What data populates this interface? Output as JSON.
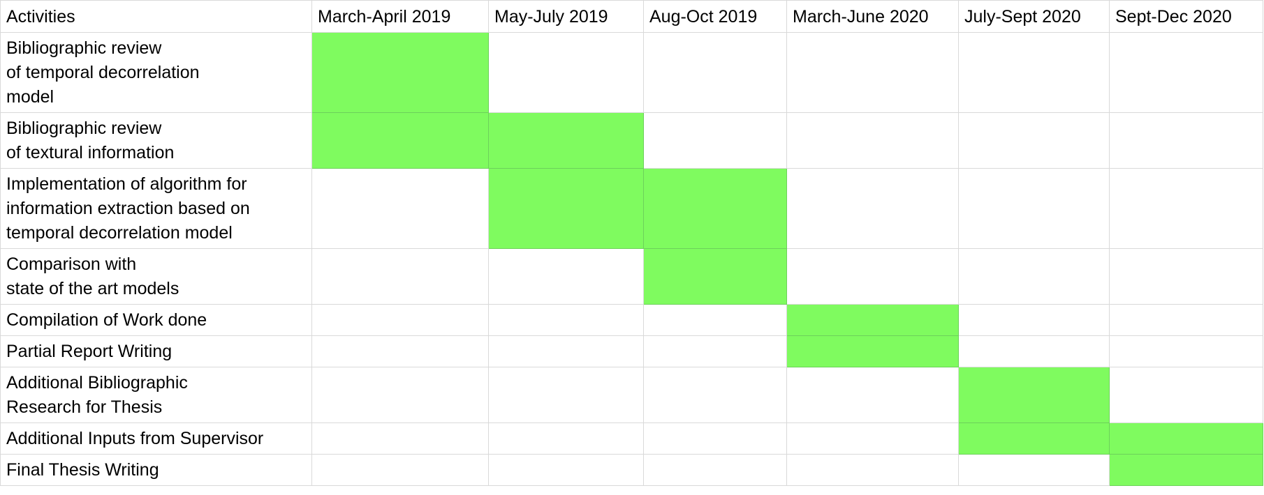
{
  "table": {
    "corner_header": "Activities",
    "periods": [
      "March-April 2019",
      "May-July 2019",
      "Aug-Oct 2019",
      "March-June 2020",
      "July-Sept 2020",
      "Sept-Dec 2020"
    ],
    "active_fill": "#7ffb5f",
    "rows": [
      {
        "lines": [
          "Bibliographic review",
          "of temporal decorrelation",
          "model"
        ],
        "active": [
          0
        ]
      },
      {
        "lines": [
          "Bibliographic review",
          "of textural information"
        ],
        "active": [
          0,
          1
        ]
      },
      {
        "lines": [
          "Implementation of algorithm for",
          "information extraction based on",
          "temporal decorrelation model"
        ],
        "active": [
          1,
          2
        ]
      },
      {
        "lines": [
          "Comparison with",
          "state of the art models"
        ],
        "active": [
          2
        ]
      },
      {
        "lines": [
          "Compilation of Work done"
        ],
        "active": [
          3
        ]
      },
      {
        "lines": [
          "Partial Report Writing"
        ],
        "active": [
          3
        ]
      },
      {
        "lines": [
          "Additional Bibliographic",
          "Research for Thesis"
        ],
        "active": [
          4
        ]
      },
      {
        "lines": [
          "Additional Inputs from Supervisor"
        ],
        "active": [
          4,
          5
        ]
      },
      {
        "lines": [
          "Final Thesis Writing"
        ],
        "active": [
          5
        ]
      }
    ]
  }
}
